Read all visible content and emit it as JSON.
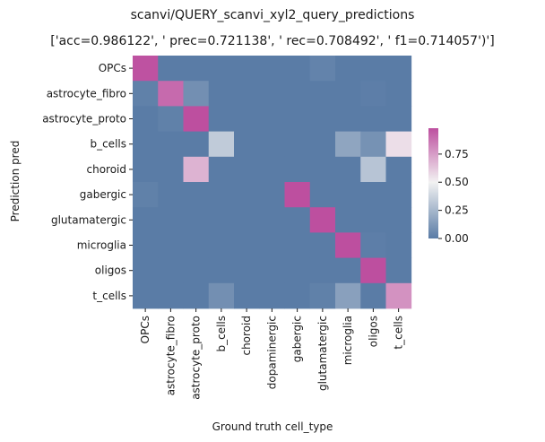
{
  "chart_data": {
    "type": "heatmap",
    "title": "scanvi/QUERY_scanvi_xyl2_query_predictions",
    "subtitle": "['acc=0.986122', '  prec=0.721138', ' rec=0.708492', ' f1=0.714057')']",
    "xlabel": "Ground truth cell_type",
    "ylabel": "Prediction pred",
    "x_categories": [
      "OPCs",
      "astrocyte_fibro",
      "astrocyte_proto",
      "b_cells",
      "choroid",
      "dopaminergic",
      "gabergic",
      "glutamatergic",
      "microglia",
      "oligos",
      "t_cells"
    ],
    "y_categories": [
      "OPCs",
      "astrocyte_fibro",
      "astrocyte_proto",
      "b_cells",
      "choroid",
      "gabergic",
      "glutamatergic",
      "microglia",
      "oligos",
      "t_cells"
    ],
    "values": [
      [
        0.97,
        0.0,
        0.0,
        0.0,
        0.0,
        0.0,
        0.0,
        0.03,
        0.0,
        0.0,
        0.0
      ],
      [
        0.02,
        0.9,
        0.08,
        0.0,
        0.0,
        0.0,
        0.0,
        0.0,
        0.0,
        0.01,
        0.0
      ],
      [
        0.0,
        0.02,
        0.98,
        0.0,
        0.0,
        0.0,
        0.0,
        0.0,
        0.0,
        0.0,
        0.0
      ],
      [
        0.0,
        0.0,
        0.0,
        0.33,
        0.0,
        0.0,
        0.0,
        0.0,
        0.17,
        0.09,
        0.55
      ],
      [
        0.0,
        0.0,
        0.68,
        0.0,
        0.0,
        0.0,
        0.0,
        0.0,
        0.0,
        0.3,
        0.0
      ],
      [
        0.02,
        0.0,
        0.0,
        0.0,
        0.0,
        0.0,
        0.98,
        0.0,
        0.0,
        0.0,
        0.0
      ],
      [
        0.0,
        0.0,
        0.0,
        0.0,
        0.0,
        0.0,
        0.0,
        0.99,
        0.0,
        0.0,
        0.0
      ],
      [
        0.0,
        0.0,
        0.0,
        0.0,
        0.0,
        0.0,
        0.0,
        0.0,
        0.98,
        0.01,
        0.0
      ],
      [
        0.0,
        0.0,
        0.0,
        0.0,
        0.0,
        0.0,
        0.0,
        0.0,
        0.0,
        1.0,
        0.0
      ],
      [
        0.0,
        0.0,
        0.0,
        0.08,
        0.0,
        0.0,
        0.0,
        0.02,
        0.15,
        0.0,
        0.78
      ]
    ],
    "colorbar": {
      "range": [
        0,
        0.98
      ],
      "ticks": [
        "0.00",
        "0.25",
        "0.50",
        "0.75"
      ],
      "tick_values": [
        0,
        0.25,
        0.5,
        0.75
      ],
      "colors": {
        "low": "#5a7ca6",
        "mid": "#f2f2f2",
        "high": "#bd4f9f"
      }
    },
    "grid": false,
    "legend": "right"
  }
}
